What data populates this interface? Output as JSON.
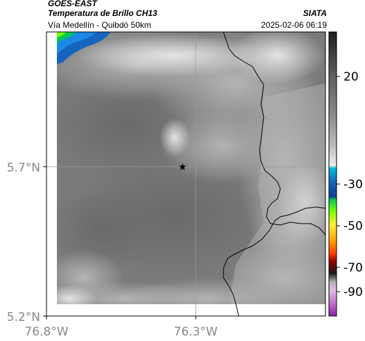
{
  "header": {
    "satellite": "GOES-EAST",
    "product": "Temperatura de Brillo CH13",
    "organization": "SIATA",
    "location": "Vía Medellín - Quibdó 50km",
    "timestamp": "2025-02-06 06:19"
  },
  "map": {
    "lat_ticks": [
      "5.7°N",
      "5.2°N"
    ],
    "lon_ticks": [
      "76.8°W",
      "76.3°W"
    ],
    "marker": "star-icon",
    "gridlines": true,
    "border_color": "#000000",
    "gridline_color": "#9a9a9a"
  },
  "colorbar": {
    "ticks": [
      "20",
      "-30",
      "-50",
      "-70",
      "-90"
    ],
    "stops": [
      "#2b2b2b",
      "#5a5a5a",
      "#8a8a8a",
      "#b8b8b8",
      "#e6e6e6",
      "#00bcd4",
      "#1565c0",
      "#0d47a1",
      "#00c853",
      "#76ff03",
      "#ffeb3b",
      "#ff9800",
      "#ff3d00",
      "#b71c1c",
      "#3e2723",
      "#1a1a1a",
      "#bdbdbd",
      "#e1bee7",
      "#9c27b0"
    ]
  }
}
